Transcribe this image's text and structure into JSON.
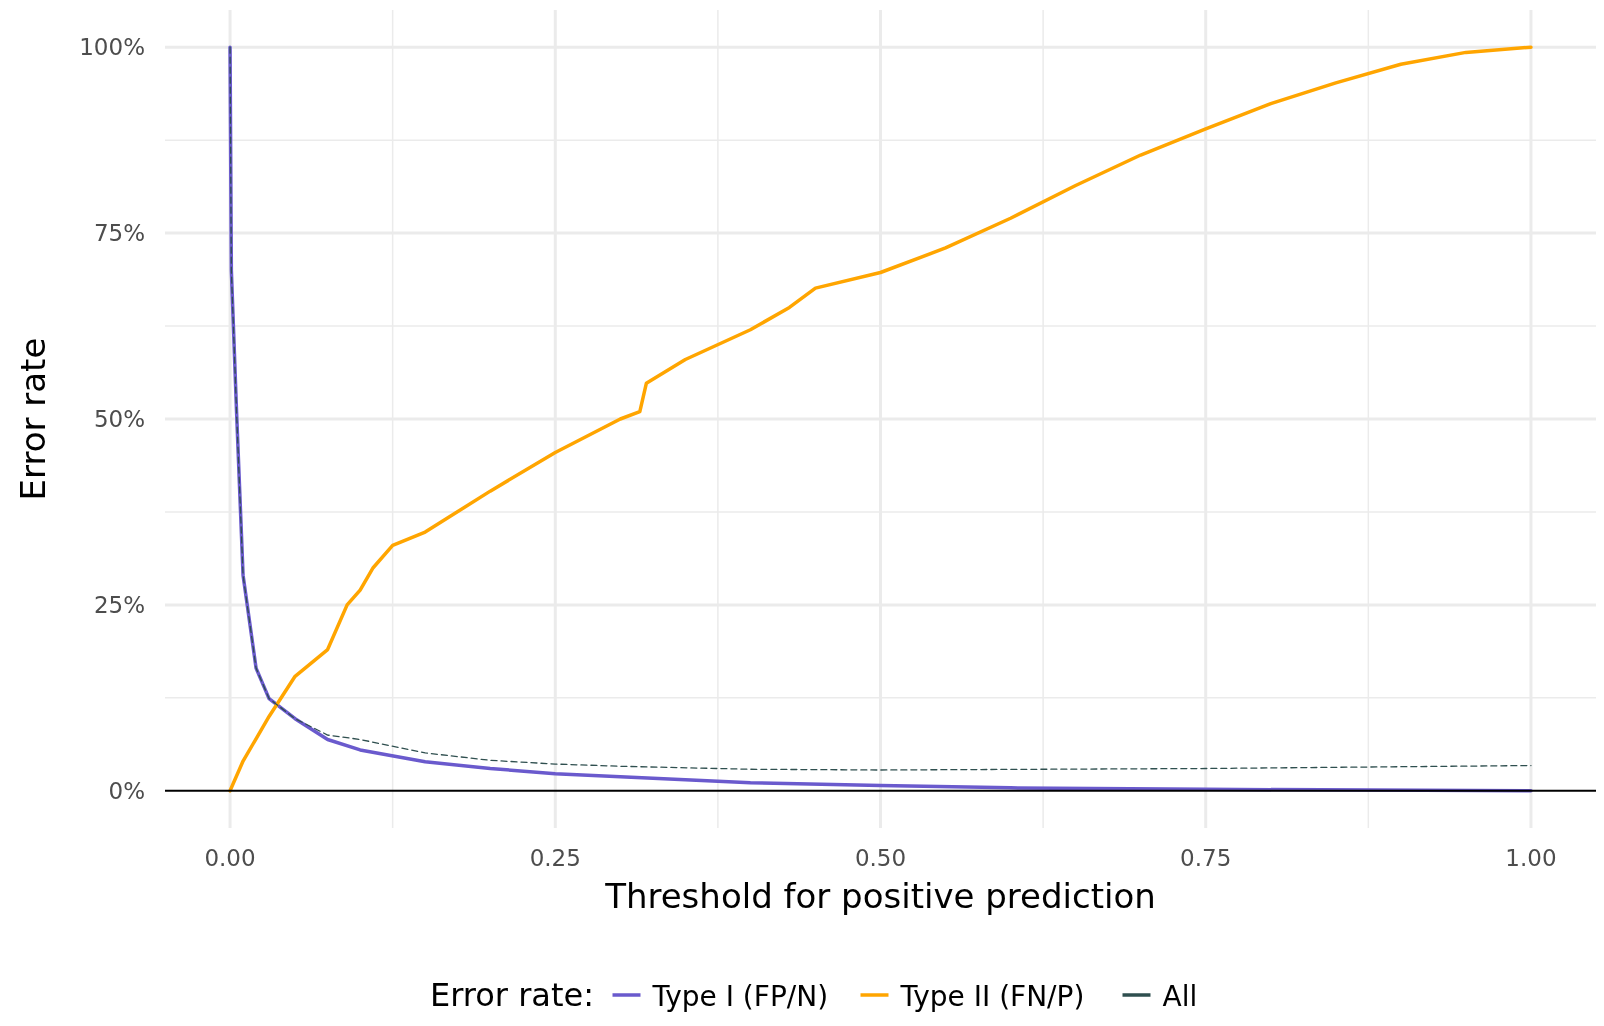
{
  "chart_data": {
    "type": "line",
    "xlabel": "Threshold for positive prediction",
    "ylabel": "Error rate",
    "legend_title": "Error rate:",
    "legend": "bottom",
    "grid": true,
    "xlim": [
      -0.05,
      1.05
    ],
    "ylim": [
      -5,
      105
    ],
    "xticks": [
      {
        "value": 0,
        "label": "0.00"
      },
      {
        "value": 0.125,
        "label": null
      },
      {
        "value": 0.25,
        "label": "0.25"
      },
      {
        "value": 0.375,
        "label": null
      },
      {
        "value": 0.5,
        "label": "0.50"
      },
      {
        "value": 0.625,
        "label": null
      },
      {
        "value": 0.75,
        "label": "0.75"
      },
      {
        "value": 0.875,
        "label": null
      },
      {
        "value": 1,
        "label": "1.00"
      }
    ],
    "yticks": [
      {
        "value": 0,
        "label": "0%"
      },
      {
        "value": 12.5,
        "label": null
      },
      {
        "value": 25,
        "label": "25%"
      },
      {
        "value": 37.5,
        "label": null
      },
      {
        "value": 50,
        "label": "50%"
      },
      {
        "value": 62.5,
        "label": null
      },
      {
        "value": 75,
        "label": "75%"
      },
      {
        "value": 87.5,
        "label": null
      },
      {
        "value": 100,
        "label": "100%"
      }
    ],
    "series": [
      {
        "name": "Type I (FP/N)",
        "color": "#6a5acd",
        "x": [
          0,
          0.001,
          0.005,
          0.01,
          0.02,
          0.03,
          0.05,
          0.075,
          0.1,
          0.15,
          0.2,
          0.25,
          0.3,
          0.4,
          0.5,
          0.6,
          0.75,
          1
        ],
        "values": [
          100,
          70,
          51,
          29,
          16.5,
          12.4,
          9.7,
          6.9,
          5.5,
          3.9,
          3,
          2.3,
          1.9,
          1.1,
          0.7,
          0.4,
          0.2,
          0
        ]
      },
      {
        "name": "Type II (FN/P)",
        "color": "#ffa500",
        "x": [
          0,
          0.01,
          0.02,
          0.03,
          0.05,
          0.075,
          0.09,
          0.1,
          0.11,
          0.125,
          0.15,
          0.2,
          0.25,
          0.3,
          0.315,
          0.32,
          0.35,
          0.4,
          0.43,
          0.45,
          0.5,
          0.55,
          0.6,
          0.65,
          0.7,
          0.75,
          0.8,
          0.85,
          0.9,
          0.95,
          1
        ],
        "values": [
          0,
          4,
          7,
          10,
          15.4,
          19,
          25,
          27,
          30,
          33,
          34.8,
          40.3,
          45.5,
          50,
          51,
          54.8,
          58,
          62,
          65,
          67.6,
          69.7,
          73,
          77,
          81.4,
          85.5,
          89,
          92.4,
          95.2,
          97.7,
          99.3,
          100
        ]
      },
      {
        "name": "All",
        "color": "#2f4f4f",
        "line_style": "dashed",
        "x": [
          0,
          0.001,
          0.005,
          0.01,
          0.02,
          0.03,
          0.05,
          0.075,
          0.1,
          0.15,
          0.2,
          0.25,
          0.3,
          0.4,
          0.5,
          0.75,
          1
        ],
        "values": [
          100,
          70,
          51,
          29,
          16.5,
          12.4,
          9.7,
          7.5,
          6.9,
          5.1,
          4.1,
          3.6,
          3.3,
          2.9,
          2.8,
          3,
          3.4
        ]
      }
    ]
  }
}
